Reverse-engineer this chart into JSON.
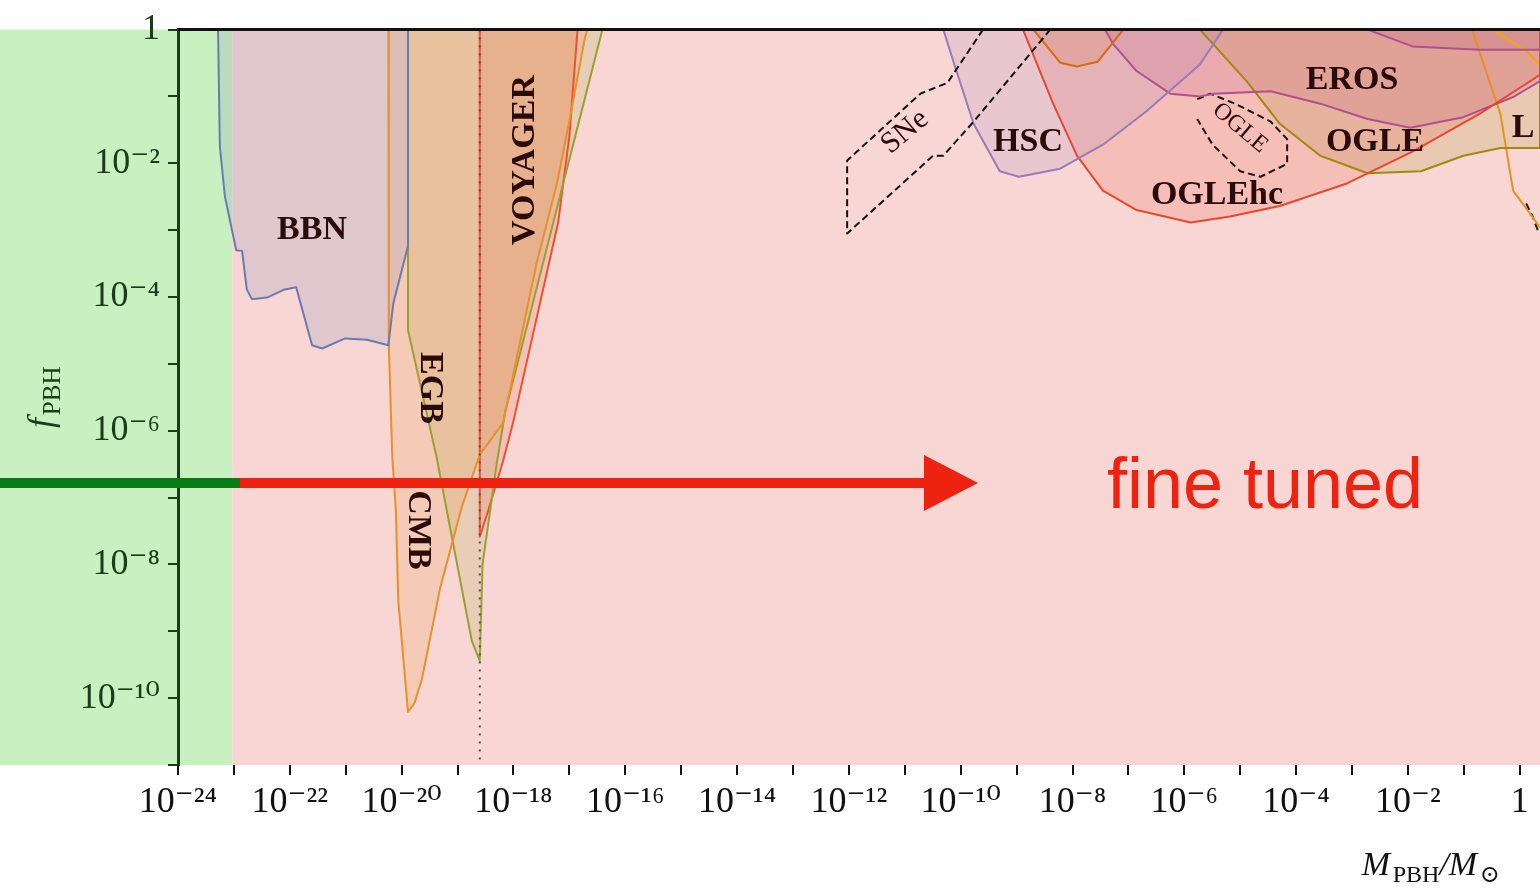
{
  "chart_data": {
    "type": "area",
    "xlabel": "M$_{PBH}$/M$_{⊙}$",
    "ylabel": "f$_{PBH}$",
    "log": "xy",
    "xlim": [
      1e-24,
      2.3
    ],
    "ylim": [
      1e-11,
      1
    ],
    "xticks": [
      {
        "value": 1e-24,
        "label": "10⁻²⁴"
      },
      {
        "value": 1e-23,
        "label": null
      },
      {
        "value": 1e-22,
        "label": "10⁻²²"
      },
      {
        "value": 1e-21,
        "label": null
      },
      {
        "value": 1e-20,
        "label": "10⁻²⁰"
      },
      {
        "value": 1e-19,
        "label": null
      },
      {
        "value": 1e-18,
        "label": "10⁻¹⁸"
      },
      {
        "value": 1e-17,
        "label": null
      },
      {
        "value": 1e-16,
        "label": "10⁻¹⁶"
      },
      {
        "value": 1e-15,
        "label": null
      },
      {
        "value": 1e-14,
        "label": "10⁻¹⁴"
      },
      {
        "value": 1e-13,
        "label": null
      },
      {
        "value": 1e-12,
        "label": "10⁻¹²"
      },
      {
        "value": 1e-11,
        "label": null
      },
      {
        "value": 1e-10,
        "label": "10⁻¹⁰"
      },
      {
        "value": 1e-09,
        "label": null
      },
      {
        "value": 1e-08,
        "label": "10⁻⁸"
      },
      {
        "value": 1e-07,
        "label": null
      },
      {
        "value": 1e-06,
        "label": "10⁻⁶"
      },
      {
        "value": 1e-05,
        "label": null
      },
      {
        "value": 0.0001,
        "label": "10⁻⁴"
      },
      {
        "value": 0.001,
        "label": null
      },
      {
        "value": 0.01,
        "label": "10⁻²"
      },
      {
        "value": 0.1,
        "label": null
      },
      1
    ],
    "yticks": [
      {
        "value": 1e-11,
        "label": null
      },
      {
        "value": 1e-10,
        "label": "10⁻¹⁰"
      },
      {
        "value": 1e-09,
        "label": null
      },
      {
        "value": 1e-08,
        "label": "10⁻⁸"
      },
      {
        "value": 1e-07,
        "label": null
      },
      {
        "value": 1e-06,
        "label": "10⁻⁶"
      },
      {
        "value": 1e-05,
        "label": null
      },
      {
        "value": 0.0001,
        "label": "10⁻⁴"
      },
      {
        "value": 0.001,
        "label": null
      },
      {
        "value": 0.01,
        "label": "10⁻²"
      },
      {
        "value": 0.1,
        "label": null
      },
      1
    ],
    "bands": [
      {
        "axis": "x",
        "from": 1e-24,
        "to": 9.3e-24,
        "color": "#c8f0c0"
      },
      {
        "axis": "x",
        "from": 9.3e-24,
        "to": 2.3,
        "color": "#f8d6d3"
      }
    ],
    "ref_lines": [
      {
        "axis": "x",
        "value": 2.5e-19,
        "color": "#555555",
        "line_style": "dotted"
      }
    ],
    "series": [
      {
        "color": "#6b7bb0",
        "x": [
          5.2e-24,
          5.6e-24,
          6.9e-24,
          1.1e-23,
          1.4e-23,
          1.7e-23,
          2.1e-23,
          3.9e-23,
          8.1e-23,
          1.3e-22,
          2.5e-22,
          3.8e-22,
          9.8e-22,
          2.4e-21,
          5.8e-21,
          7.1e-21,
          1.3e-20,
          1.3e-20
        ],
        "values": [
          1,
          0.018,
          0.0032,
          0.0005,
          0.00049,
          0.00013,
          9.3e-05,
          9.8e-05,
          0.00013,
          0.00014,
          1.9e-05,
          1.7e-05,
          2.4e-05,
          2.3e-05,
          1.9e-05,
          8.1e-05,
          0.00058,
          1
        ]
      },
      {
        "color": "#e8902a",
        "x": [
          5.8e-21,
          5.9e-21,
          6.8e-21,
          7.9e-21,
          8.7e-21,
          1.3e-20,
          1.7e-20,
          2.3e-20,
          4.9e-20,
          1.2e-19,
          2.5e-19,
          6.5e-19,
          2.6e-18,
          6e-18,
          1e-17,
          1.9e-17,
          2.1e-17
        ],
        "values": [
          1,
          1.9e-05,
          4.1e-07,
          6.2e-08,
          2.9e-09,
          6.2e-11,
          8.5e-11,
          1.9e-10,
          4.5e-09,
          7.4e-08,
          4.4e-07,
          1.3e-06,
          0.00032,
          0.005,
          0.043,
          0.76,
          1
        ]
      },
      {
        "color": "#9aa030",
        "x": [
          1.3e-20,
          1.3e-20,
          4.2e-20,
          1.8e-19,
          2.5e-19,
          2.8e-19,
          5.1e-19,
          7.1e-19,
          6.3e-18,
          3.9e-17
        ],
        "values": [
          1,
          3.2e-05,
          4.1e-07,
          7.2e-10,
          3.6e-10,
          1e-08,
          3.5e-07,
          1.9e-06,
          0.0025,
          1
        ]
      },
      {
        "color": "#f05030",
        "x": [
          2.5e-19,
          2.5e-19,
          3.5e-19,
          6.5e-19,
          9.8e-19,
          6.3e-18,
          1e-17,
          1.4e-17
        ],
        "values": [
          1,
          2.6e-08,
          6.2e-08,
          3.5e-07,
          1.3e-06,
          0.0013,
          0.025,
          1
        ]
      },
      {
        "type": "line",
        "line_style": "dashed",
        "color": "#111111",
        "x": [
          2.5e-10,
          5.8e-11,
          1.9e-11,
          9.3e-13,
          9.3e-13,
          3.2e-11,
          4.9e-11,
          1.7e-10,
          4e-09
        ],
        "values": [
          1,
          0.16,
          0.11,
          0.011,
          0.00089,
          0.013,
          0.013,
          0.042,
          1
        ]
      },
      {
        "color": "#9a7ab8",
        "x": [
          4.9e-11,
          7.9e-11,
          1.7e-10,
          5e-10,
          1.1e-09,
          6e-09,
          3.5e-08,
          2.1e-07,
          1.9e-06,
          4.9e-06
        ],
        "values": [
          1,
          0.28,
          0.039,
          0.0076,
          0.0063,
          0.0083,
          0.019,
          0.06,
          0.3,
          1
        ]
      },
      {
        "color": "#e84830",
        "x": [
          1.3e-09,
          4.5e-09,
          1.2e-08,
          3.5e-08,
          1.4e-07,
          1.3e-06,
          6.6e-06,
          5.1e-05,
          0.00081,
          0.012,
          0.19,
          2.3,
          2.3
        ],
        "values": [
          1,
          0.078,
          0.013,
          0.0039,
          0.002,
          0.0013,
          0.0016,
          0.0023,
          0.005,
          0.015,
          0.055,
          0.21,
          1
        ]
      },
      {
        "color": "#d86a10",
        "x": [
          2e-09,
          6e-09,
          1.2e-08,
          2.8e-08,
          8.1e-08
        ],
        "values": [
          1,
          0.32,
          0.28,
          0.33,
          1
        ]
      },
      {
        "color": "#b05090",
        "x": [
          3.8e-08,
          5.4e-08,
          1.4e-07,
          5.6e-07,
          1.9e-06,
          3.3e-06,
          3.5e-05,
          0.00027,
          0.0019,
          0.011,
          0.098,
          0.76,
          2.3,
          2.3
        ],
        "values": [
          1,
          0.6,
          0.24,
          0.11,
          0.1,
          0.11,
          0.12,
          0.078,
          0.046,
          0.034,
          0.049,
          0.098,
          0.17,
          1
        ]
      },
      {
        "color": "#b05090",
        "x": [
          0.0019,
          0.012,
          0.19,
          2.3,
          2.3
        ],
        "values": [
          1,
          0.56,
          0.5,
          0.5,
          1
        ]
      },
      {
        "color": "#a08a10",
        "x": [
          1.9e-06,
          1.3e-05,
          5.1e-05,
          0.00027,
          0.0019,
          0.017,
          0.098,
          0.45,
          2.3,
          2.3
        ],
        "values": [
          1,
          0.17,
          0.039,
          0.013,
          0.0071,
          0.0076,
          0.013,
          0.017,
          0.017,
          1
        ]
      },
      {
        "type": "line",
        "line_style": "dashed",
        "color": "#1c1410",
        "x": [
          1.7e-06,
          2.9e-06,
          8.1e-06,
          3.5e-05,
          6.9e-05,
          6.9e-05,
          2.3e-05,
          1e-05,
          3.2e-06,
          1.7e-06
        ],
        "values": [
          0.091,
          0.11,
          0.078,
          0.042,
          0.023,
          0.0098,
          0.0063,
          0.0076,
          0.019,
          0.046
        ]
      },
      {
        "type": "line",
        "color": "#e89020",
        "x": [
          0.14,
          0.45,
          0.76,
          2.3
        ],
        "values": [
          1,
          0.055,
          0.0039,
          0.0011
        ]
      },
      {
        "type": "line",
        "color": "#f0a800",
        "x": [
          0.33,
          1.35,
          2.3
        ],
        "values": [
          1,
          0.47,
          0.3
        ]
      },
      {
        "type": "line",
        "line_style": "dashed",
        "color": "#261a14",
        "x": [
          1.3,
          1.7,
          2.1
        ],
        "values": [
          0.0025,
          0.0016,
          0.001
        ]
      }
    ],
    "annotations": [
      "BBN",
      "VOYAGER",
      "EGB",
      "CMB",
      "SNe",
      "HSC",
      "OGLEhc",
      "OGLE",
      "OGLE",
      "EROS",
      "L",
      "fine tuned"
    ]
  }
}
